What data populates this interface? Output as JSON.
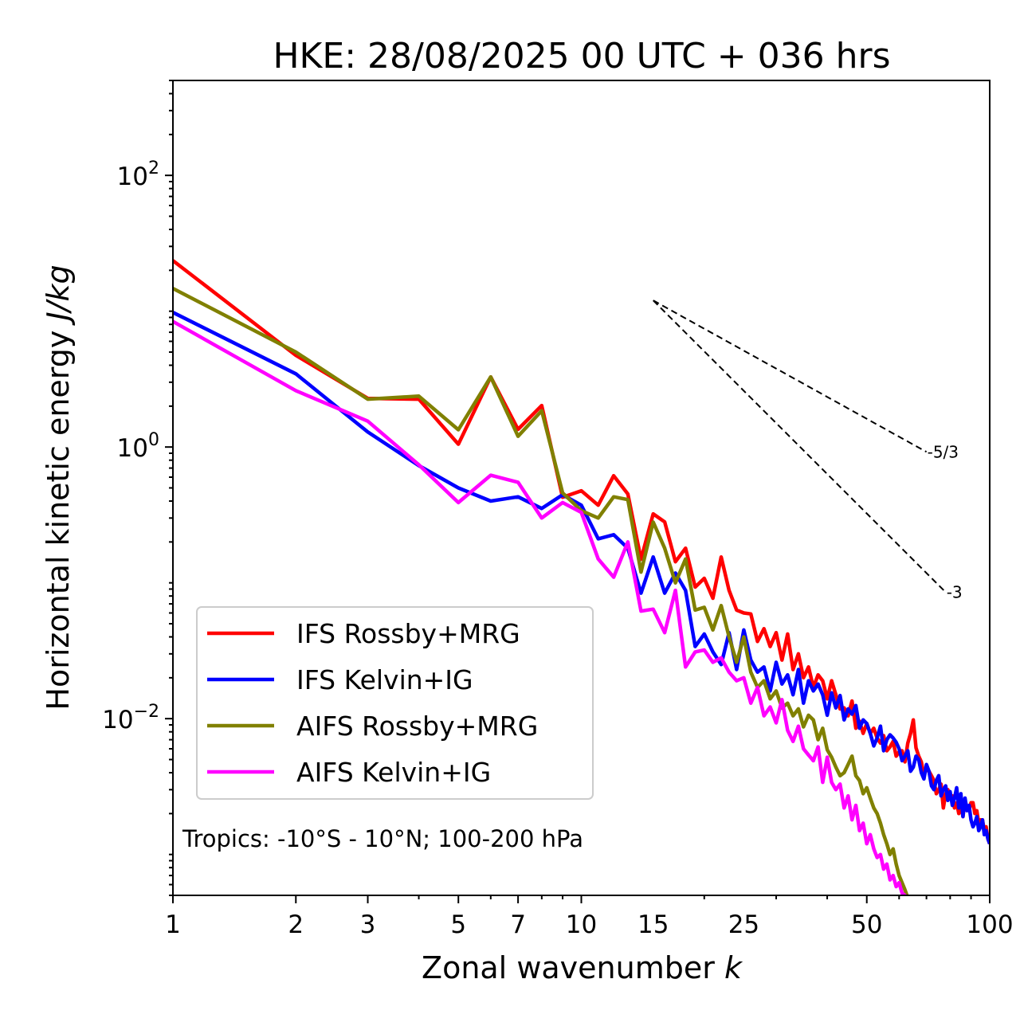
{
  "chart_data": {
    "type": "line",
    "title": "HKE: 28/08/2025 00 UTC + 036 hrs",
    "xlabel": "Zonal wavenumber",
    "xlabel_var": "k",
    "ylabel": "Horizontal kinetic energy",
    "ylabel_unit": "J/kg",
    "xscale": "log",
    "yscale": "log",
    "xlim": [
      1,
      100
    ],
    "ylim": [
      0.0005,
      500
    ],
    "grid": false,
    "legend_position": "lower-left",
    "x_ticks": [
      {
        "value": 1,
        "label": "1"
      },
      {
        "value": 2,
        "label": "2"
      },
      {
        "value": 3,
        "label": "3"
      },
      {
        "value": 5,
        "label": "5"
      },
      {
        "value": 7,
        "label": "7"
      },
      {
        "value": 10,
        "label": "10"
      },
      {
        "value": 15,
        "label": "15"
      },
      {
        "value": 25,
        "label": "25"
      },
      {
        "value": 50,
        "label": "50"
      },
      {
        "value": 100,
        "label": "100"
      }
    ],
    "y_ticks": [
      {
        "value": 100,
        "base": "10",
        "exp": "2"
      },
      {
        "value": 1,
        "base": "10",
        "exp": "0"
      },
      {
        "value": 0.01,
        "base": "10",
        "exp": "−2"
      }
    ],
    "annotation": "Tropics: -10°S - 10°N; 100-200 hPa",
    "reference_slopes": [
      {
        "label": "-5/3",
        "slope": -1.6667,
        "k_start": 15,
        "k_end": 70,
        "e_start": 12.0
      },
      {
        "label": "-3",
        "slope": -3,
        "k_start": 15,
        "k_end": 78,
        "e_start": 12.0
      }
    ],
    "series": [
      {
        "name": "IFS Rossby+MRG",
        "color": "#ff0000",
        "k_start": 1,
        "values": [
          23.6,
          4.73,
          2.28,
          2.25,
          1.05,
          3.28,
          1.35,
          2.02,
          0.427,
          0.476,
          0.373,
          0.615,
          0.451,
          0.149,
          0.322,
          0.281,
          0.143,
          0.18,
          0.093,
          0.108,
          0.077,
          0.155,
          0.088,
          0.063,
          0.06,
          0.059,
          0.037,
          0.046,
          0.034,
          0.043,
          0.027,
          0.042,
          0.023,
          0.03,
          0.02,
          0.024,
          0.017,
          0.021,
          0.019,
          0.014,
          0.019,
          0.015,
          0.0118,
          0.012,
          0.0105,
          0.0135,
          0.0085,
          0.0096,
          0.0078,
          0.0092,
          0.0078,
          0.0085,
          0.0072,
          0.0066,
          0.0075,
          0.0058,
          0.0062,
          0.0068,
          0.0053,
          0.0057,
          0.0058,
          0.0048,
          0.0066,
          0.0078,
          0.0098,
          0.0061,
          0.0053,
          0.0048,
          0.0038,
          0.0043,
          0.0041,
          0.0038,
          0.0035,
          0.0028,
          0.003,
          0.0033,
          0.0022,
          0.0028,
          0.003,
          0.0026,
          0.0027,
          0.0022,
          0.0024,
          0.002,
          0.0024,
          0.0019,
          0.0025,
          0.0022,
          0.0021,
          0.0024,
          0.0024,
          0.002,
          0.0021,
          0.0017,
          0.0018,
          0.0018,
          0.0015,
          0.0016,
          0.0013,
          0.0012
        ]
      },
      {
        "name": "IFS Kelvin+IG",
        "color": "#0000ff",
        "k_start": 1,
        "values": [
          9.8,
          3.46,
          1.29,
          0.73,
          0.5,
          0.4,
          0.43,
          0.353,
          0.445,
          0.373,
          0.211,
          0.226,
          0.18,
          0.084,
          0.155,
          0.084,
          0.118,
          0.088,
          0.034,
          0.042,
          0.031,
          0.025,
          0.043,
          0.023,
          0.045,
          0.027,
          0.022,
          0.024,
          0.016,
          0.026,
          0.018,
          0.021,
          0.015,
          0.023,
          0.013,
          0.019,
          0.016,
          0.018,
          0.015,
          0.0106,
          0.0155,
          0.012,
          0.0148,
          0.0098,
          0.0118,
          0.0108,
          0.0125,
          0.0085,
          0.0098,
          0.0092,
          0.0078,
          0.0063,
          0.0072,
          0.0088,
          0.0058,
          0.007,
          0.0076,
          0.0072,
          0.0067,
          0.006,
          0.0049,
          0.0053,
          0.0058,
          0.0041,
          0.0044,
          0.0053,
          0.005,
          0.004,
          0.0036,
          0.0046,
          0.0041,
          0.0032,
          0.003,
          0.0035,
          0.0038,
          0.0027,
          0.003,
          0.0032,
          0.0025,
          0.0029,
          0.0023,
          0.0026,
          0.0031,
          0.0022,
          0.0028,
          0.0019,
          0.0026,
          0.0021,
          0.0023,
          0.0018,
          0.0016,
          0.0017,
          0.0019,
          0.0015,
          0.0016,
          0.0018,
          0.0014,
          0.0015,
          0.0013,
          0.0012
        ]
      },
      {
        "name": "AIFS Rossby+MRG",
        "color": "#808000",
        "k_start": 1,
        "values": [
          14.7,
          5.0,
          2.25,
          2.37,
          1.34,
          3.28,
          1.2,
          1.85,
          0.46,
          0.34,
          0.3,
          0.43,
          0.41,
          0.12,
          0.28,
          0.18,
          0.1,
          0.15,
          0.063,
          0.066,
          0.045,
          0.068,
          0.04,
          0.026,
          0.04,
          0.022,
          0.017,
          0.019,
          0.014,
          0.016,
          0.012,
          0.013,
          0.0105,
          0.0118,
          0.0087,
          0.0106,
          0.0098,
          0.007,
          0.0085,
          0.0059,
          0.0052,
          0.0044,
          0.0038,
          0.004,
          0.0046,
          0.0053,
          0.0038,
          0.0035,
          0.0028,
          0.0031,
          0.0026,
          0.0022,
          0.002,
          0.0017,
          0.0014,
          0.0012,
          0.001,
          0.0011,
          0.00085,
          0.0007,
          0.00062,
          0.00055,
          0.00048,
          0.0004
        ]
      },
      {
        "name": "AIFS Kelvin+IG",
        "color": "#ff00ff",
        "k_start": 1,
        "values": [
          8.4,
          2.6,
          1.55,
          0.74,
          0.39,
          0.62,
          0.55,
          0.3,
          0.39,
          0.33,
          0.15,
          0.11,
          0.2,
          0.062,
          0.064,
          0.043,
          0.088,
          0.024,
          0.031,
          0.032,
          0.026,
          0.028,
          0.022,
          0.019,
          0.02,
          0.013,
          0.017,
          0.0105,
          0.0122,
          0.0093,
          0.0138,
          0.0082,
          0.0068,
          0.0088,
          0.006,
          0.0054,
          0.0049,
          0.0062,
          0.0034,
          0.0052,
          0.0034,
          0.003,
          0.0033,
          0.0022,
          0.0027,
          0.0018,
          0.0023,
          0.0015,
          0.0017,
          0.0012,
          0.0014,
          0.0011,
          0.00095,
          0.001,
          0.00078,
          0.00085,
          0.00065,
          0.0007,
          0.00058,
          0.00062,
          0.00052,
          0.0005,
          0.00045
        ]
      }
    ]
  }
}
